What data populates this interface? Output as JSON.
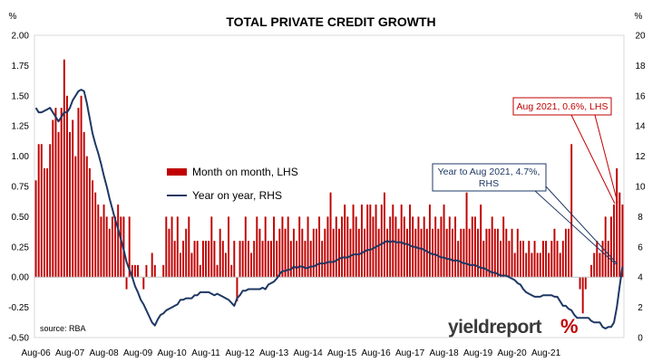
{
  "chart_data": {
    "type": "bar",
    "title": "TOTAL PRIVATE CREDIT GROWTH",
    "unit_left": "%",
    "unit_right": "%",
    "left_axis": {
      "min": -0.5,
      "max": 2.0,
      "ticks": [
        "-0.50",
        "-0.25",
        "0.00",
        "0.25",
        "0.50",
        "0.75",
        "1.00",
        "1.25",
        "1.50",
        "1.75",
        "2.00"
      ]
    },
    "right_axis": {
      "min": 0,
      "max": 20,
      "ticks": [
        "0",
        "2",
        "4",
        "6",
        "8",
        "10",
        "12",
        "14",
        "16",
        "18",
        "20"
      ]
    },
    "x_ticks": [
      "Aug-06",
      "Aug-07",
      "Aug-08",
      "Aug-09",
      "Aug-10",
      "Aug-11",
      "Aug-12",
      "Aug-13",
      "Aug-14",
      "Aug-15",
      "Aug-16",
      "Aug-17",
      "Aug-18",
      "Aug-19",
      "Aug-20",
      "Aug-21"
    ],
    "start_month": "Aug-06",
    "grid": false,
    "legend": {
      "placement": "center-left"
    },
    "series": [
      {
        "name": "Month on month, LHS",
        "type": "bar",
        "axis": "left",
        "color": "#c00000",
        "values": [
          0.8,
          1.1,
          1.1,
          0.9,
          0.9,
          1.1,
          1.3,
          1.4,
          1.2,
          1.4,
          1.8,
          1.5,
          1.2,
          1.3,
          1.0,
          1.4,
          1.5,
          1.2,
          1.0,
          0.9,
          0.8,
          0.7,
          0.6,
          0.5,
          0.6,
          0.5,
          0.4,
          0.5,
          0.5,
          0.6,
          0.5,
          0.5,
          -0.1,
          0.5,
          0.1,
          0.1,
          0.1,
          0.0,
          -0.1,
          0.1,
          0.0,
          0.2,
          0.1,
          0.0,
          0.0,
          0.1,
          0.5,
          0.4,
          0.5,
          0.3,
          0.5,
          0.2,
          0.3,
          0.4,
          0.5,
          0.2,
          0.3,
          0.3,
          0.1,
          0.3,
          0.3,
          0.3,
          0.5,
          0.3,
          0.1,
          0.4,
          0.3,
          0.2,
          0.5,
          0.1,
          0.3,
          -0.2,
          0.3,
          0.3,
          0.5,
          0.3,
          0.2,
          0.3,
          0.5,
          0.4,
          0.3,
          0.5,
          0.3,
          0.3,
          0.5,
          0.3,
          0.4,
          0.5,
          0.4,
          0.5,
          0.3,
          0.4,
          0.3,
          0.5,
          0.4,
          0.3,
          0.5,
          0.3,
          0.4,
          0.4,
          0.5,
          0.3,
          0.4,
          0.5,
          0.7,
          0.4,
          0.5,
          0.4,
          0.5,
          0.6,
          0.5,
          0.4,
          0.6,
          0.5,
          0.4,
          0.6,
          0.4,
          0.6,
          0.6,
          0.5,
          0.6,
          0.4,
          0.6,
          0.7,
          0.4,
          0.5,
          0.6,
          0.5,
          0.4,
          0.6,
          0.5,
          0.4,
          0.6,
          0.5,
          0.4,
          0.5,
          0.4,
          0.5,
          0.4,
          0.6,
          0.4,
          0.5,
          0.4,
          0.5,
          0.6,
          0.4,
          0.5,
          0.4,
          0.5,
          0.3,
          0.4,
          0.4,
          0.7,
          0.4,
          0.5,
          0.5,
          0.4,
          0.6,
          0.3,
          0.4,
          0.4,
          0.5,
          0.4,
          0.4,
          0.3,
          0.5,
          0.4,
          0.3,
          0.4,
          0.2,
          0.4,
          0.3,
          0.3,
          0.2,
          0.3,
          0.2,
          0.3,
          0.2,
          0.2,
          0.3,
          0.3,
          0.2,
          0.3,
          0.4,
          0.3,
          0.2,
          0.3,
          0.4,
          0.4,
          1.1,
          0.0,
          0.0,
          -0.1,
          -0.3,
          -0.1,
          0.0,
          0.1,
          0.2,
          0.3,
          0.2,
          0.3,
          0.5,
          0.3,
          0.5,
          0.6,
          0.9,
          0.7,
          0.6
        ]
      },
      {
        "name": "Year on year, RHS",
        "type": "line",
        "axis": "right",
        "color": "#1f3864",
        "values": [
          15.2,
          14.9,
          14.9,
          15.0,
          15.1,
          15.2,
          14.9,
          14.6,
          14.3,
          14.6,
          14.9,
          14.9,
          15.2,
          15.7,
          16.0,
          16.3,
          16.4,
          16.3,
          15.5,
          14.5,
          13.5,
          12.8,
          12.2,
          11.5,
          10.7,
          10.0,
          9.2,
          8.5,
          7.8,
          7.2,
          6.5,
          5.8,
          5.0,
          4.5,
          4.0,
          3.4,
          3.0,
          2.5,
          2.2,
          1.8,
          1.4,
          1.0,
          0.8,
          1.2,
          1.5,
          1.6,
          1.8,
          1.9,
          2.0,
          2.1,
          2.2,
          2.5,
          2.5,
          2.6,
          2.6,
          2.6,
          2.8,
          2.8,
          3.0,
          3.0,
          3.0,
          3.0,
          2.9,
          2.8,
          2.9,
          2.8,
          2.7,
          2.6,
          2.5,
          2.3,
          2.1,
          2.6,
          2.8,
          3.1,
          3.1,
          3.2,
          3.2,
          3.2,
          3.2,
          3.2,
          3.3,
          3.2,
          3.5,
          3.6,
          3.7,
          3.9,
          4.2,
          4.4,
          4.4,
          4.5,
          4.5,
          4.7,
          4.6,
          4.7,
          4.7,
          4.6,
          4.6,
          4.7,
          4.7,
          4.8,
          4.9,
          4.9,
          4.9,
          5.0,
          5.0,
          5.0,
          5.1,
          5.2,
          5.3,
          5.3,
          5.3,
          5.4,
          5.5,
          5.5,
          5.5,
          5.6,
          5.7,
          5.8,
          5.8,
          5.9,
          6.0,
          6.1,
          6.2,
          6.3,
          6.4,
          6.3,
          6.4,
          6.3,
          6.3,
          6.3,
          6.2,
          6.2,
          6.1,
          6.0,
          6.0,
          5.9,
          5.9,
          5.8,
          5.7,
          5.6,
          5.5,
          5.5,
          5.4,
          5.3,
          5.3,
          5.2,
          5.2,
          5.1,
          5.1,
          5.1,
          5.0,
          4.9,
          4.9,
          4.8,
          4.8,
          4.8,
          4.7,
          4.6,
          4.6,
          4.5,
          4.4,
          4.3,
          4.3,
          4.2,
          4.1,
          4.1,
          4.1,
          4.0,
          3.9,
          3.8,
          3.6,
          3.5,
          3.2,
          3.0,
          2.9,
          2.8,
          2.7,
          2.7,
          2.7,
          2.8,
          2.8,
          2.8,
          2.8,
          2.7,
          2.7,
          2.4,
          2.1,
          2.1,
          1.9,
          1.8,
          1.5,
          1.3,
          1.3,
          1.3,
          1.3,
          1.3,
          1.1,
          1.0,
          1.0,
          1.0,
          0.7,
          0.6,
          0.7,
          0.7,
          1.0,
          2.0,
          3.4,
          4.7
        ]
      }
    ],
    "annotations": [
      {
        "text_lines": [
          "Aug 2021, 0.6%, LHS"
        ],
        "color": "#c00000"
      },
      {
        "text_lines": [
          "Year to Aug 2021, 4.7%,",
          "RHS"
        ],
        "color": "#1f3864"
      }
    ],
    "source": "source: RBA"
  },
  "branding": {
    "logo_text": "yieldreport",
    "logo_symbol": "%"
  }
}
